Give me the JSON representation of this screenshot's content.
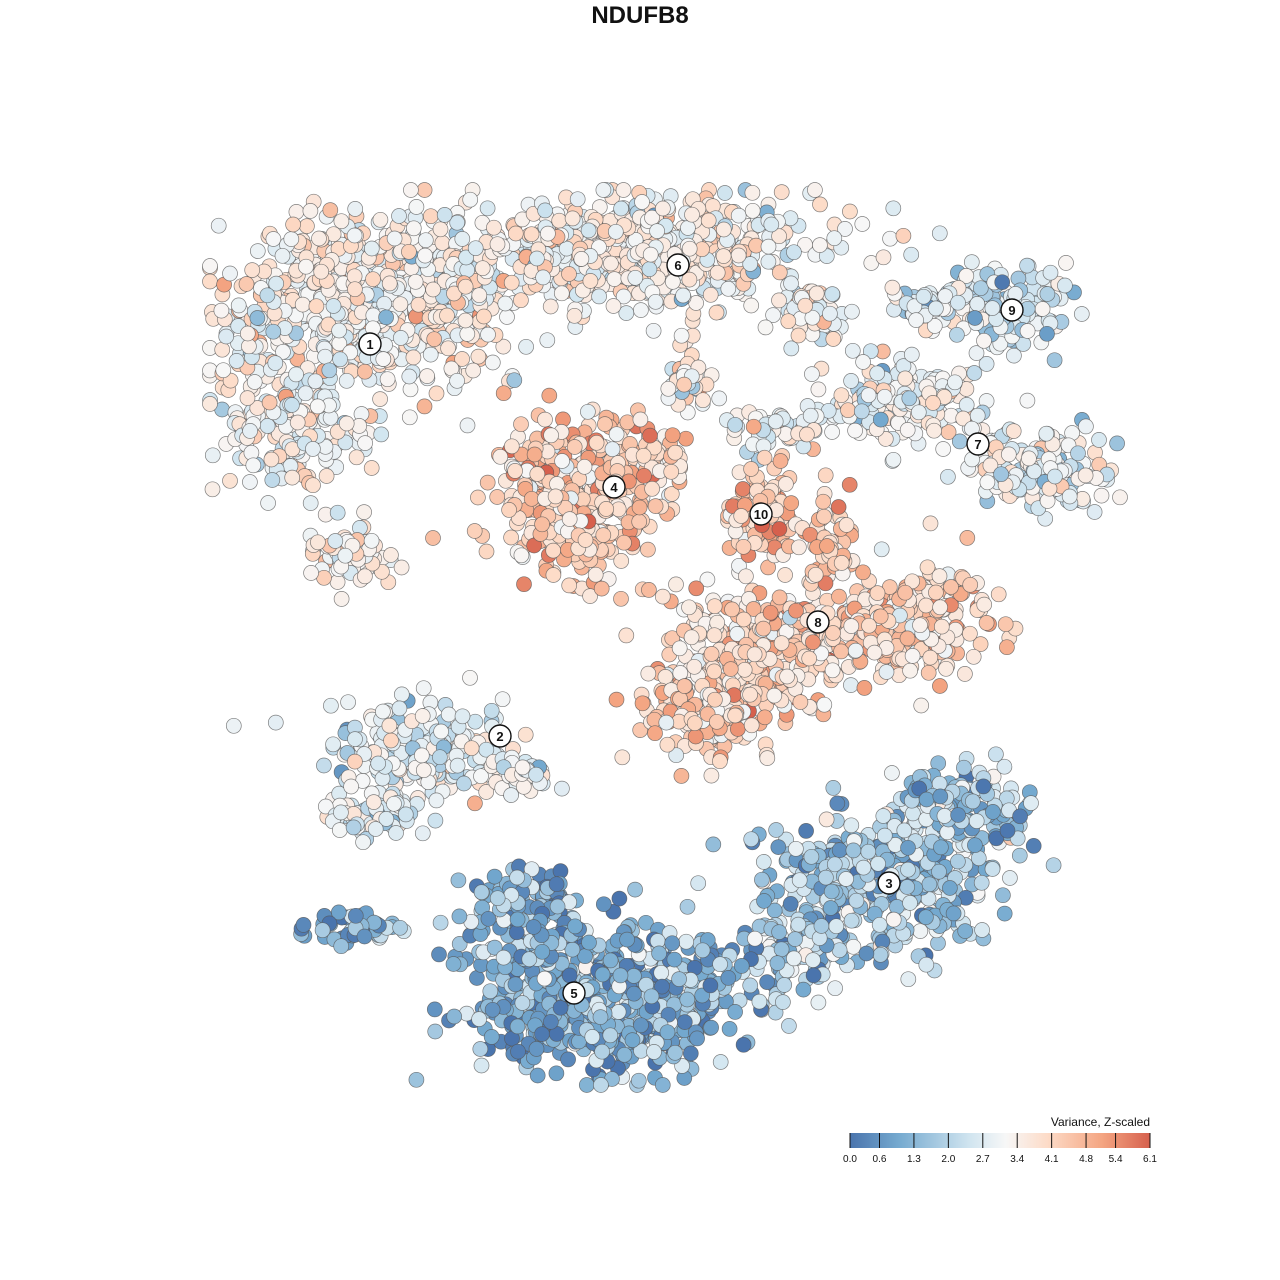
{
  "chart_data": {
    "type": "scatter",
    "title": "NDUFB8",
    "xlabel": "",
    "ylabel": "",
    "grid": false,
    "legend": {
      "title": "Variance, Z-scaled",
      "placement": "bottom-right",
      "ticks": [
        "0.0",
        "0.6",
        "1.3",
        "2.0",
        "2.7",
        "3.4",
        "4.1",
        "4.8",
        "5.4",
        "6.1"
      ],
      "range": [
        0.0,
        6.1
      ],
      "colors": [
        "#4a74ad",
        "#74a9cf",
        "#d1e5f0",
        "#f7f7f7",
        "#fddbc7",
        "#f4a582",
        "#d6604d"
      ]
    },
    "clusters": [
      {
        "label": "1",
        "mean": 3.2
      },
      {
        "label": "2",
        "mean": 2.6
      },
      {
        "label": "3",
        "mean": 1.6
      },
      {
        "label": "4",
        "mean": 4.3
      },
      {
        "label": "5",
        "mean": 1.1
      },
      {
        "label": "6",
        "mean": 3.1
      },
      {
        "label": "7",
        "mean": 2.8
      },
      {
        "label": "8",
        "mean": 4.0
      },
      {
        "label": "9",
        "mean": 2.3
      },
      {
        "label": "10",
        "mean": 4.4
      }
    ]
  }
}
